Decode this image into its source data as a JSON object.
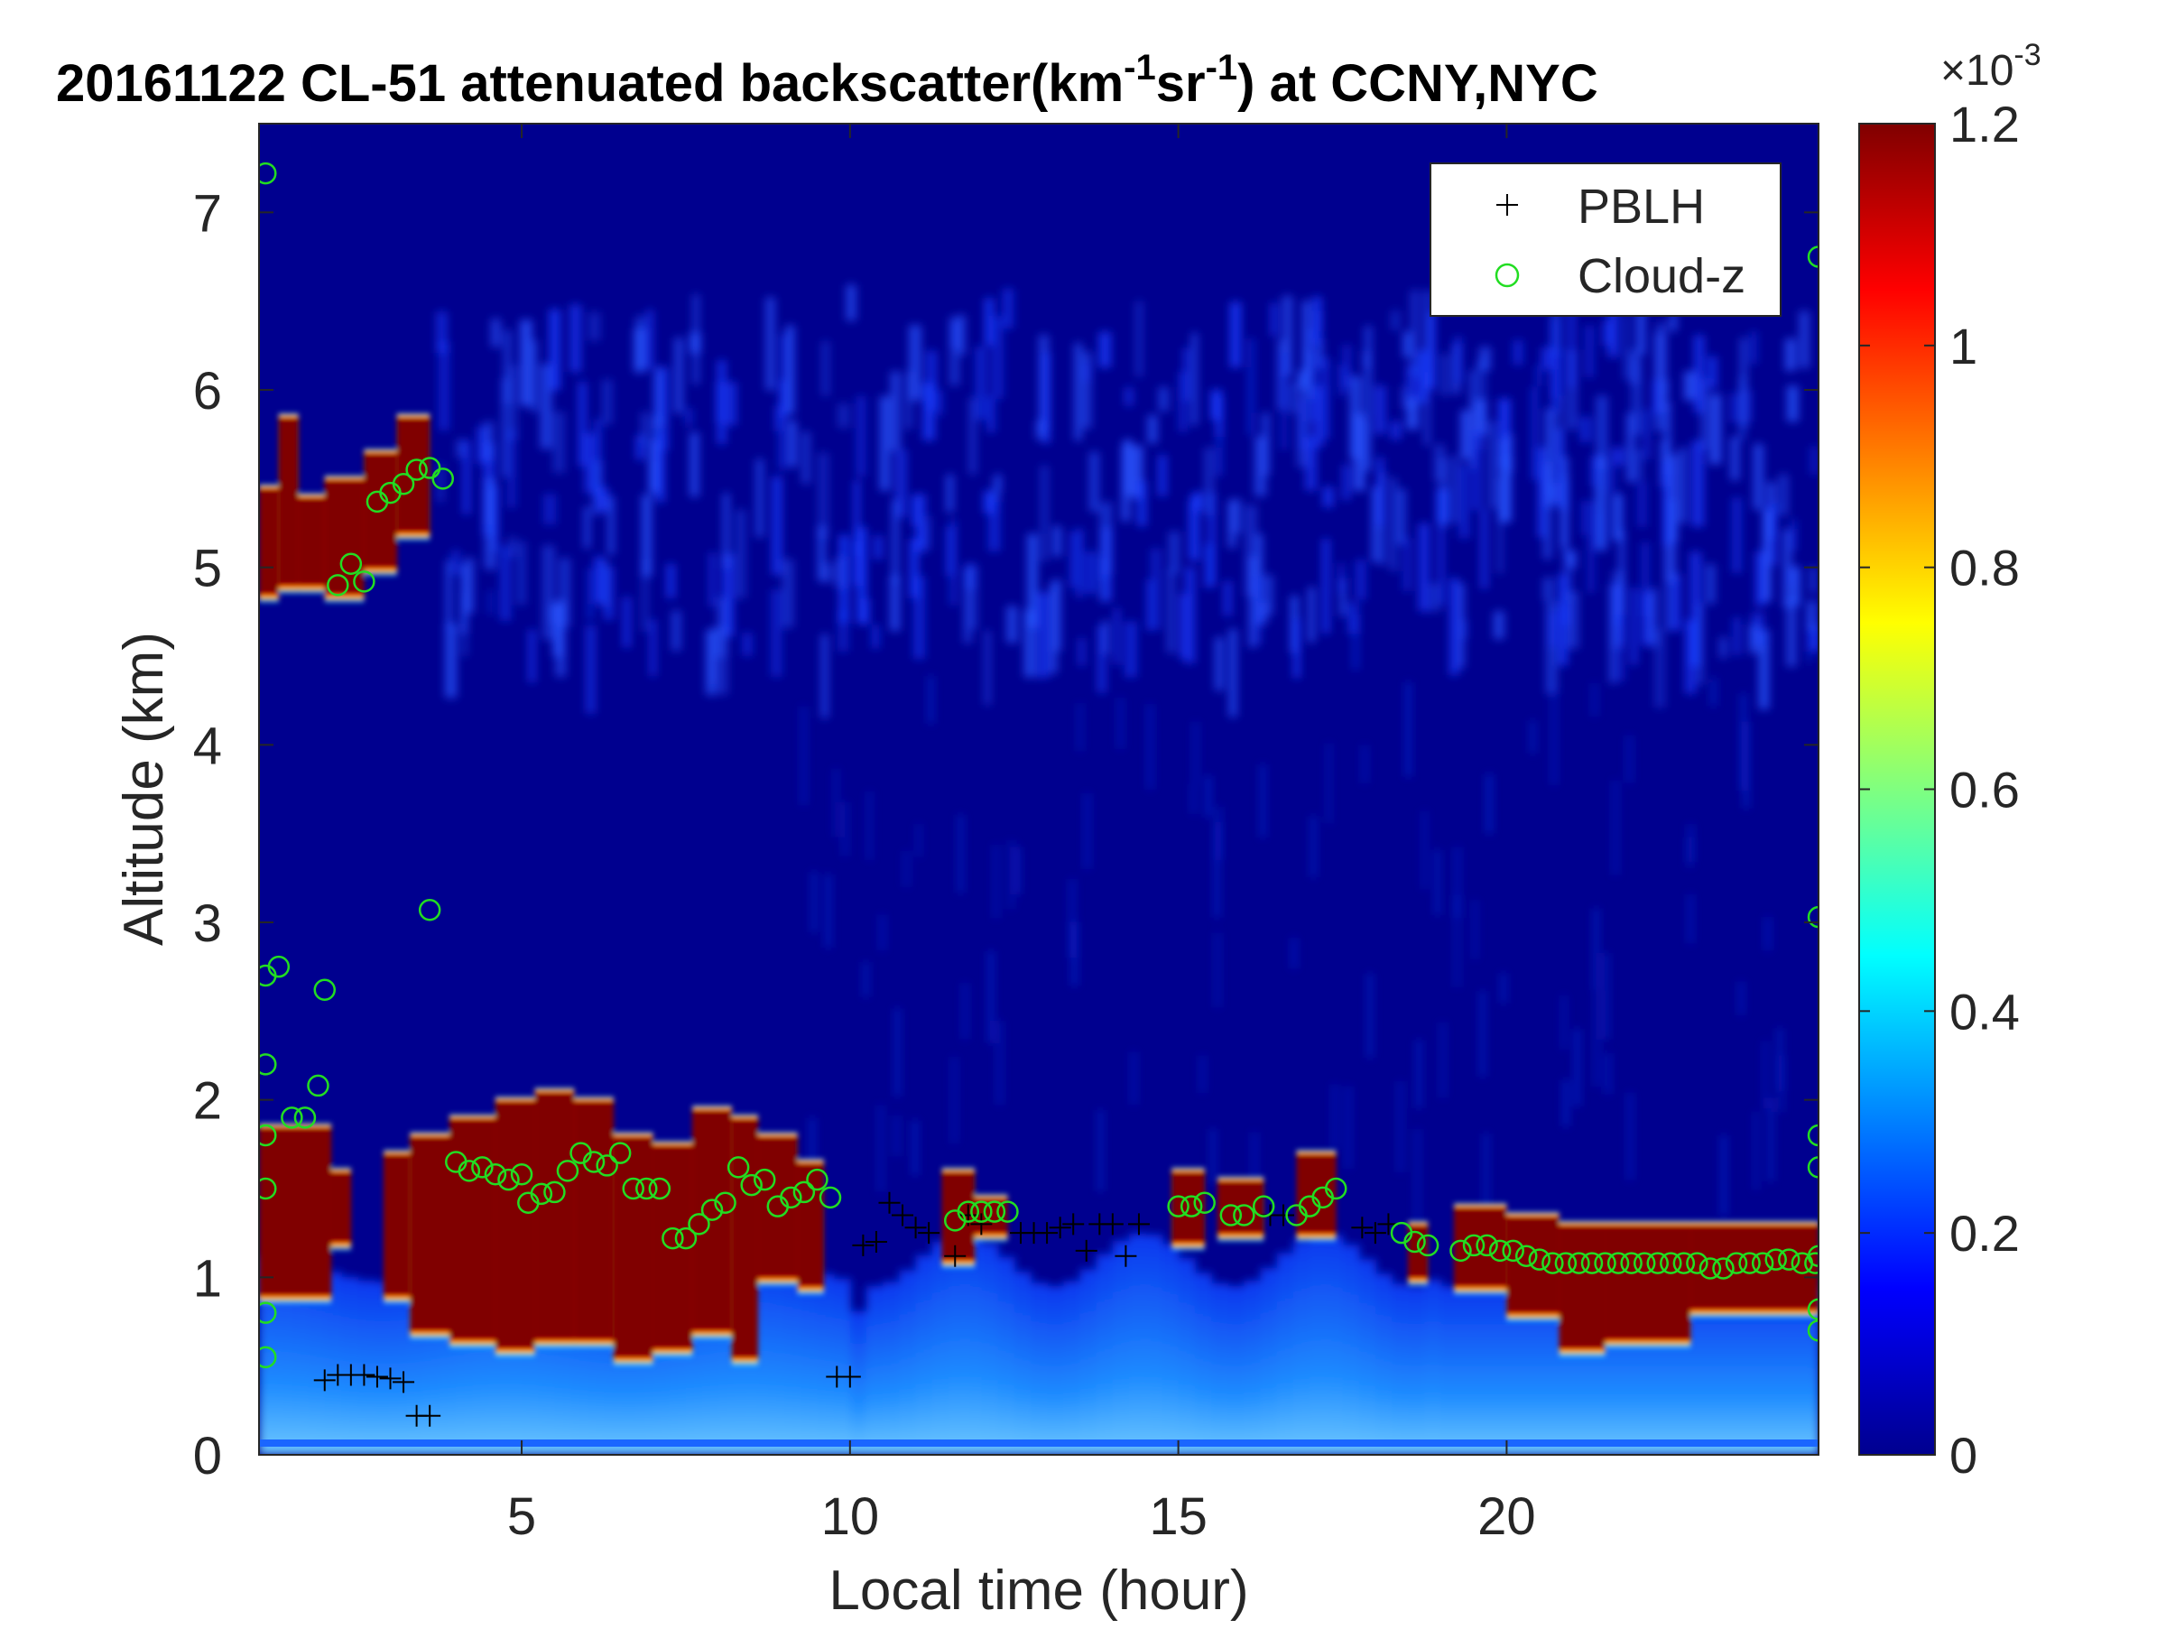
{
  "chart_data": {
    "type": "heatmap",
    "title": {
      "prefix": "20161122  CL-51 attenuated backscatter(km",
      "sup1": "-1",
      "mid": "sr",
      "sup2": "-1",
      "suffix": ") at CCNY,NYC"
    },
    "xlabel": "Local time (hour)",
    "ylabel": "Altitude (km)",
    "xlim": [
      1,
      24.75
    ],
    "ylim": [
      0,
      7.5
    ],
    "xticks": [
      5,
      10,
      15,
      20
    ],
    "yticks": [
      0,
      1,
      2,
      3,
      4,
      5,
      6,
      7
    ],
    "colormap": "jet",
    "colorbar": {
      "range": [
        0,
        0.0012
      ],
      "ticks": [
        0,
        0.2,
        0.4,
        0.6,
        0.8,
        1,
        1.2
      ],
      "tick_labels": [
        "0",
        "0.2",
        "0.4",
        "0.6",
        "0.8",
        "1",
        "1.2"
      ],
      "exponent_base": "×10",
      "exponent": "-3"
    },
    "legend": {
      "placement": "top-right",
      "entries": [
        {
          "label": "PBLH",
          "marker": "+",
          "color": "#000000"
        },
        {
          "label": "Cloud-z",
          "marker": "o",
          "color": "#22dd22"
        }
      ]
    },
    "cloud_layers": [
      {
        "t0": 1.0,
        "t1": 1.3,
        "base": 4.85,
        "top": 5.45
      },
      {
        "t0": 1.3,
        "t1": 1.6,
        "base": 4.9,
        "top": 5.85
      },
      {
        "t0": 1.6,
        "t1": 2.0,
        "base": 4.9,
        "top": 5.4
      },
      {
        "t0": 2.0,
        "t1": 2.6,
        "base": 4.85,
        "top": 5.5
      },
      {
        "t0": 2.6,
        "t1": 3.1,
        "base": 5.0,
        "top": 5.65
      },
      {
        "t0": 3.1,
        "t1": 3.6,
        "base": 5.2,
        "top": 5.85
      },
      {
        "t0": 1.0,
        "t1": 2.1,
        "base": 0.9,
        "top": 1.85
      },
      {
        "t0": 2.1,
        "t1": 2.4,
        "base": 1.2,
        "top": 1.6
      },
      {
        "t0": 2.9,
        "t1": 3.3,
        "base": 0.9,
        "top": 1.7
      },
      {
        "t0": 3.3,
        "t1": 3.9,
        "base": 0.7,
        "top": 1.8
      },
      {
        "t0": 3.9,
        "t1": 4.6,
        "base": 0.65,
        "top": 1.9
      },
      {
        "t0": 4.6,
        "t1": 5.2,
        "base": 0.6,
        "top": 2.0
      },
      {
        "t0": 5.2,
        "t1": 5.8,
        "base": 0.65,
        "top": 2.05
      },
      {
        "t0": 5.8,
        "t1": 6.4,
        "base": 0.65,
        "top": 2.0
      },
      {
        "t0": 6.4,
        "t1": 7.0,
        "base": 0.55,
        "top": 1.8
      },
      {
        "t0": 7.0,
        "t1": 7.6,
        "base": 0.6,
        "top": 1.75
      },
      {
        "t0": 7.6,
        "t1": 8.2,
        "base": 0.7,
        "top": 1.95
      },
      {
        "t0": 8.2,
        "t1": 8.6,
        "base": 0.55,
        "top": 1.9
      },
      {
        "t0": 8.6,
        "t1": 9.2,
        "base": 1.0,
        "top": 1.8
      },
      {
        "t0": 9.2,
        "t1": 9.6,
        "base": 0.95,
        "top": 1.65
      },
      {
        "t0": 11.4,
        "t1": 11.9,
        "base": 1.1,
        "top": 1.6
      },
      {
        "t0": 11.9,
        "t1": 12.4,
        "base": 1.25,
        "top": 1.45
      },
      {
        "t0": 14.9,
        "t1": 15.4,
        "base": 1.2,
        "top": 1.6
      },
      {
        "t0": 15.6,
        "t1": 16.3,
        "base": 1.25,
        "top": 1.55
      },
      {
        "t0": 16.8,
        "t1": 17.4,
        "base": 1.25,
        "top": 1.7
      },
      {
        "t0": 18.5,
        "t1": 18.8,
        "base": 1.0,
        "top": 1.3
      },
      {
        "t0": 19.2,
        "t1": 20.0,
        "base": 0.95,
        "top": 1.4
      },
      {
        "t0": 20.0,
        "t1": 20.8,
        "base": 0.8,
        "top": 1.35
      },
      {
        "t0": 20.8,
        "t1": 21.5,
        "base": 0.6,
        "top": 1.3
      },
      {
        "t0": 21.5,
        "t1": 22.8,
        "base": 0.65,
        "top": 1.3
      },
      {
        "t0": 22.8,
        "t1": 24.75,
        "base": 0.82,
        "top": 1.3
      }
    ],
    "pblh": [
      [
        2.0,
        0.42
      ],
      [
        2.2,
        0.45
      ],
      [
        2.4,
        0.45
      ],
      [
        2.6,
        0.45
      ],
      [
        2.8,
        0.44
      ],
      [
        3.0,
        0.43
      ],
      [
        3.2,
        0.41
      ],
      [
        3.4,
        0.22
      ],
      [
        3.6,
        0.22
      ],
      [
        9.8,
        0.44
      ],
      [
        10.0,
        0.44
      ],
      [
        10.2,
        1.18
      ],
      [
        10.4,
        1.2
      ],
      [
        10.6,
        1.42
      ],
      [
        10.8,
        1.35
      ],
      [
        11.0,
        1.28
      ],
      [
        11.2,
        1.25
      ],
      [
        11.6,
        1.12
      ],
      [
        11.8,
        1.35
      ],
      [
        12.0,
        1.3
      ],
      [
        12.6,
        1.25
      ],
      [
        12.8,
        1.25
      ],
      [
        13.0,
        1.25
      ],
      [
        13.2,
        1.28
      ],
      [
        13.4,
        1.3
      ],
      [
        13.6,
        1.15
      ],
      [
        13.8,
        1.3
      ],
      [
        14.0,
        1.3
      ],
      [
        14.2,
        1.12
      ],
      [
        14.4,
        1.3
      ],
      [
        16.4,
        1.35
      ],
      [
        16.6,
        1.35
      ],
      [
        17.8,
        1.28
      ],
      [
        18.0,
        1.25
      ],
      [
        18.2,
        1.3
      ]
    ],
    "cloud_z": [
      [
        1.1,
        7.22
      ],
      [
        1.1,
        2.7
      ],
      [
        1.1,
        2.2
      ],
      [
        1.1,
        1.8
      ],
      [
        1.1,
        1.5
      ],
      [
        1.1,
        0.8
      ],
      [
        1.1,
        0.55
      ],
      [
        1.3,
        2.75
      ],
      [
        1.5,
        1.9
      ],
      [
        1.7,
        1.9
      ],
      [
        1.9,
        2.08
      ],
      [
        2.0,
        2.62
      ],
      [
        2.2,
        4.9
      ],
      [
        2.4,
        5.02
      ],
      [
        2.6,
        4.92
      ],
      [
        2.8,
        5.37
      ],
      [
        3.0,
        5.42
      ],
      [
        3.2,
        5.47
      ],
      [
        3.4,
        5.55
      ],
      [
        3.6,
        5.56
      ],
      [
        3.8,
        5.5
      ],
      [
        3.6,
        3.07
      ],
      [
        4.0,
        1.65
      ],
      [
        4.2,
        1.6
      ],
      [
        4.4,
        1.62
      ],
      [
        4.6,
        1.58
      ],
      [
        4.8,
        1.55
      ],
      [
        5.0,
        1.58
      ],
      [
        5.1,
        1.42
      ],
      [
        5.3,
        1.47
      ],
      [
        5.5,
        1.48
      ],
      [
        5.7,
        1.6
      ],
      [
        5.9,
        1.7
      ],
      [
        6.1,
        1.65
      ],
      [
        6.3,
        1.63
      ],
      [
        6.5,
        1.7
      ],
      [
        6.7,
        1.5
      ],
      [
        6.9,
        1.5
      ],
      [
        7.1,
        1.5
      ],
      [
        7.3,
        1.22
      ],
      [
        7.5,
        1.22
      ],
      [
        7.7,
        1.3
      ],
      [
        7.9,
        1.38
      ],
      [
        8.1,
        1.42
      ],
      [
        8.3,
        1.62
      ],
      [
        8.5,
        1.52
      ],
      [
        8.7,
        1.55
      ],
      [
        8.9,
        1.4
      ],
      [
        9.1,
        1.45
      ],
      [
        9.3,
        1.48
      ],
      [
        9.5,
        1.55
      ],
      [
        9.7,
        1.45
      ],
      [
        11.6,
        1.32
      ],
      [
        11.8,
        1.37
      ],
      [
        12.0,
        1.37
      ],
      [
        12.2,
        1.37
      ],
      [
        12.4,
        1.37
      ],
      [
        15.0,
        1.4
      ],
      [
        15.2,
        1.4
      ],
      [
        15.4,
        1.42
      ],
      [
        15.8,
        1.35
      ],
      [
        16.0,
        1.35
      ],
      [
        16.3,
        1.4
      ],
      [
        16.8,
        1.35
      ],
      [
        17.0,
        1.4
      ],
      [
        17.2,
        1.45
      ],
      [
        17.4,
        1.5
      ],
      [
        18.4,
        1.25
      ],
      [
        18.6,
        1.2
      ],
      [
        18.8,
        1.18
      ],
      [
        19.3,
        1.15
      ],
      [
        19.5,
        1.18
      ],
      [
        19.7,
        1.18
      ],
      [
        19.9,
        1.15
      ],
      [
        20.1,
        1.15
      ],
      [
        20.3,
        1.12
      ],
      [
        20.5,
        1.1
      ],
      [
        20.7,
        1.08
      ],
      [
        20.9,
        1.08
      ],
      [
        21.1,
        1.08
      ],
      [
        21.3,
        1.08
      ],
      [
        21.5,
        1.08
      ],
      [
        21.7,
        1.08
      ],
      [
        21.9,
        1.08
      ],
      [
        22.1,
        1.08
      ],
      [
        22.3,
        1.08
      ],
      [
        22.5,
        1.08
      ],
      [
        22.7,
        1.08
      ],
      [
        22.9,
        1.08
      ],
      [
        23.1,
        1.05
      ],
      [
        23.3,
        1.05
      ],
      [
        23.5,
        1.08
      ],
      [
        23.7,
        1.08
      ],
      [
        23.9,
        1.08
      ],
      [
        24.1,
        1.1
      ],
      [
        24.3,
        1.1
      ],
      [
        24.5,
        1.08
      ],
      [
        24.7,
        1.08
      ],
      [
        24.75,
        6.75
      ],
      [
        24.75,
        3.03
      ],
      [
        24.75,
        1.8
      ],
      [
        24.75,
        1.62
      ],
      [
        24.75,
        1.12
      ],
      [
        24.75,
        0.82
      ],
      [
        24.75,
        0.7
      ]
    ]
  }
}
